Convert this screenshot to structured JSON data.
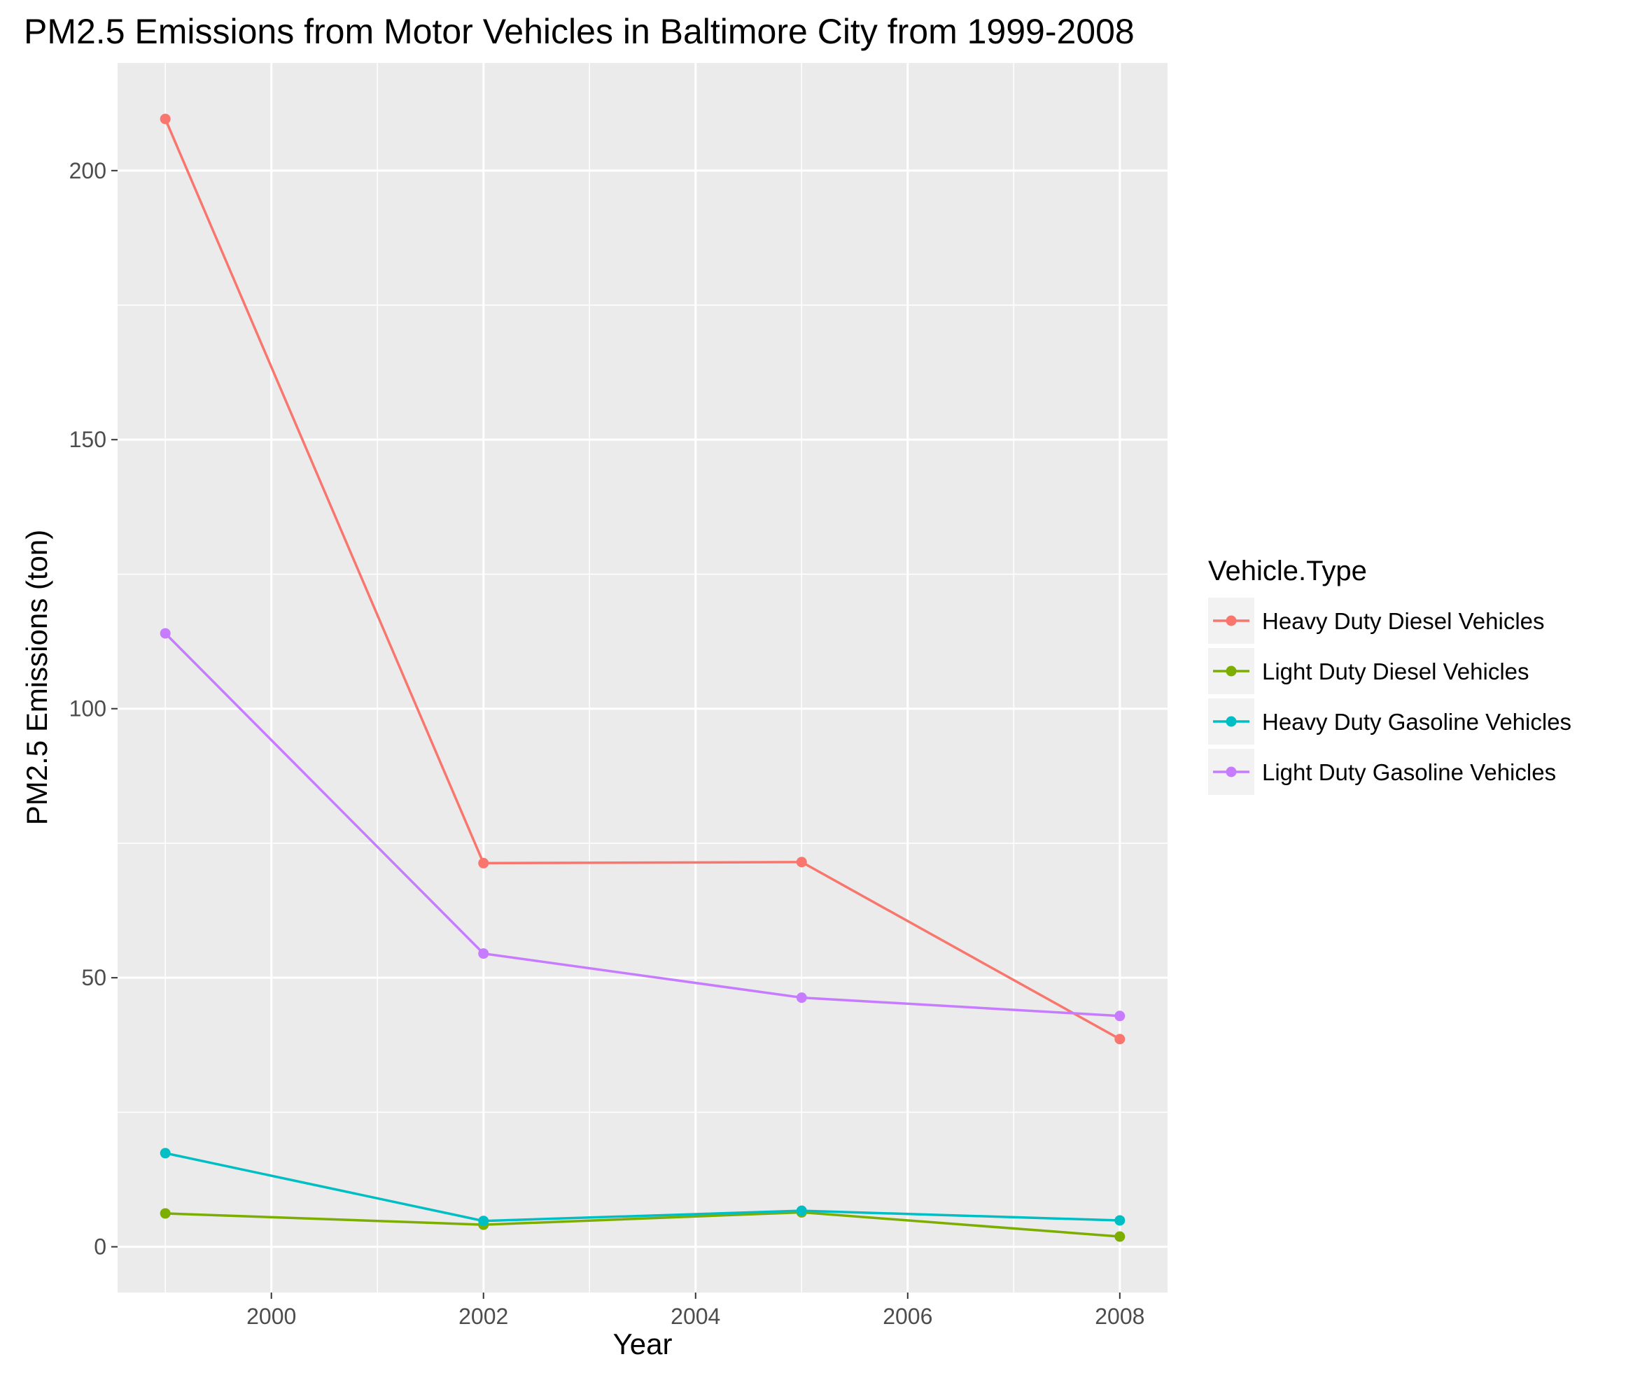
{
  "chart_data": {
    "type": "line",
    "title": "PM2.5 Emissions from Motor Vehicles in Baltimore City from 1999-2008",
    "xlabel": "Year",
    "ylabel": "PM2.5 Emissions (ton)",
    "x": [
      1999,
      2002,
      2005,
      2008
    ],
    "xlim": [
      1998.55,
      2008.45
    ],
    "ylim": [
      -8.5,
      220
    ],
    "x_ticks": [
      2000,
      2002,
      2004,
      2006,
      2008
    ],
    "y_ticks": [
      0,
      50,
      100,
      150,
      200
    ],
    "grid": true,
    "background": "#ebebeb",
    "legend": {
      "title": "Vehicle.Type",
      "placement": "right"
    },
    "series": [
      {
        "name": "Heavy Duty Diesel Vehicles",
        "color": "#f8766d",
        "values": [
          209.6,
          71.3,
          71.5,
          38.6
        ]
      },
      {
        "name": "Light Duty Diesel Vehicles",
        "color": "#7cae00",
        "values": [
          6.2,
          4.1,
          6.4,
          1.9
        ]
      },
      {
        "name": "Heavy Duty Gasoline Vehicles",
        "color": "#00bfc4",
        "values": [
          17.4,
          4.8,
          6.7,
          4.9
        ]
      },
      {
        "name": "Light Duty Gasoline Vehicles",
        "color": "#c77cff",
        "values": [
          114.0,
          54.5,
          46.3,
          42.9
        ]
      }
    ]
  }
}
